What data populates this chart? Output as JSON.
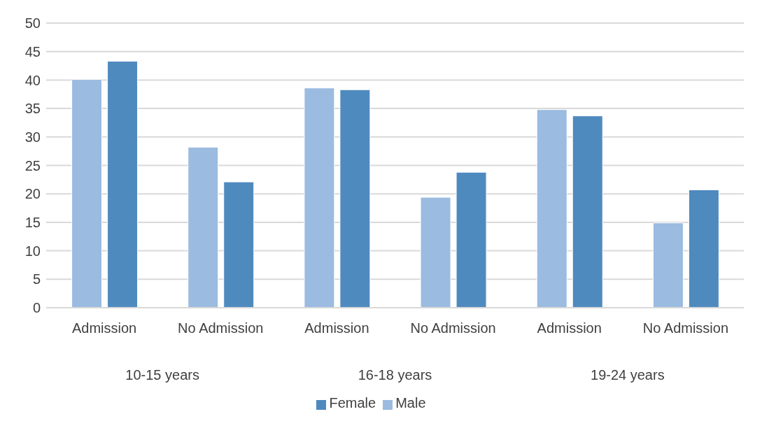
{
  "chart_data": {
    "type": "bar",
    "categories": [
      "Admission",
      "No Admission",
      "Admission",
      "No Admission",
      "Admission",
      "No Admission"
    ],
    "series": [
      {
        "name": "Male",
        "color": "#9bbbe0",
        "values": [
          40.1,
          28.2,
          38.6,
          19.4,
          34.8,
          14.9
        ]
      },
      {
        "name": "Female",
        "color": "#4f8abf",
        "values": [
          43.3,
          22.1,
          38.3,
          23.8,
          33.7,
          20.7
        ]
      }
    ],
    "annotations": [
      "10-15 years",
      "16-18 years",
      "19-24 years"
    ],
    "ylim": [
      0,
      50
    ],
    "yticks": [
      0,
      5,
      10,
      15,
      20,
      25,
      30,
      35,
      40,
      45,
      50
    ],
    "grid": "y",
    "legend": "bottom"
  }
}
